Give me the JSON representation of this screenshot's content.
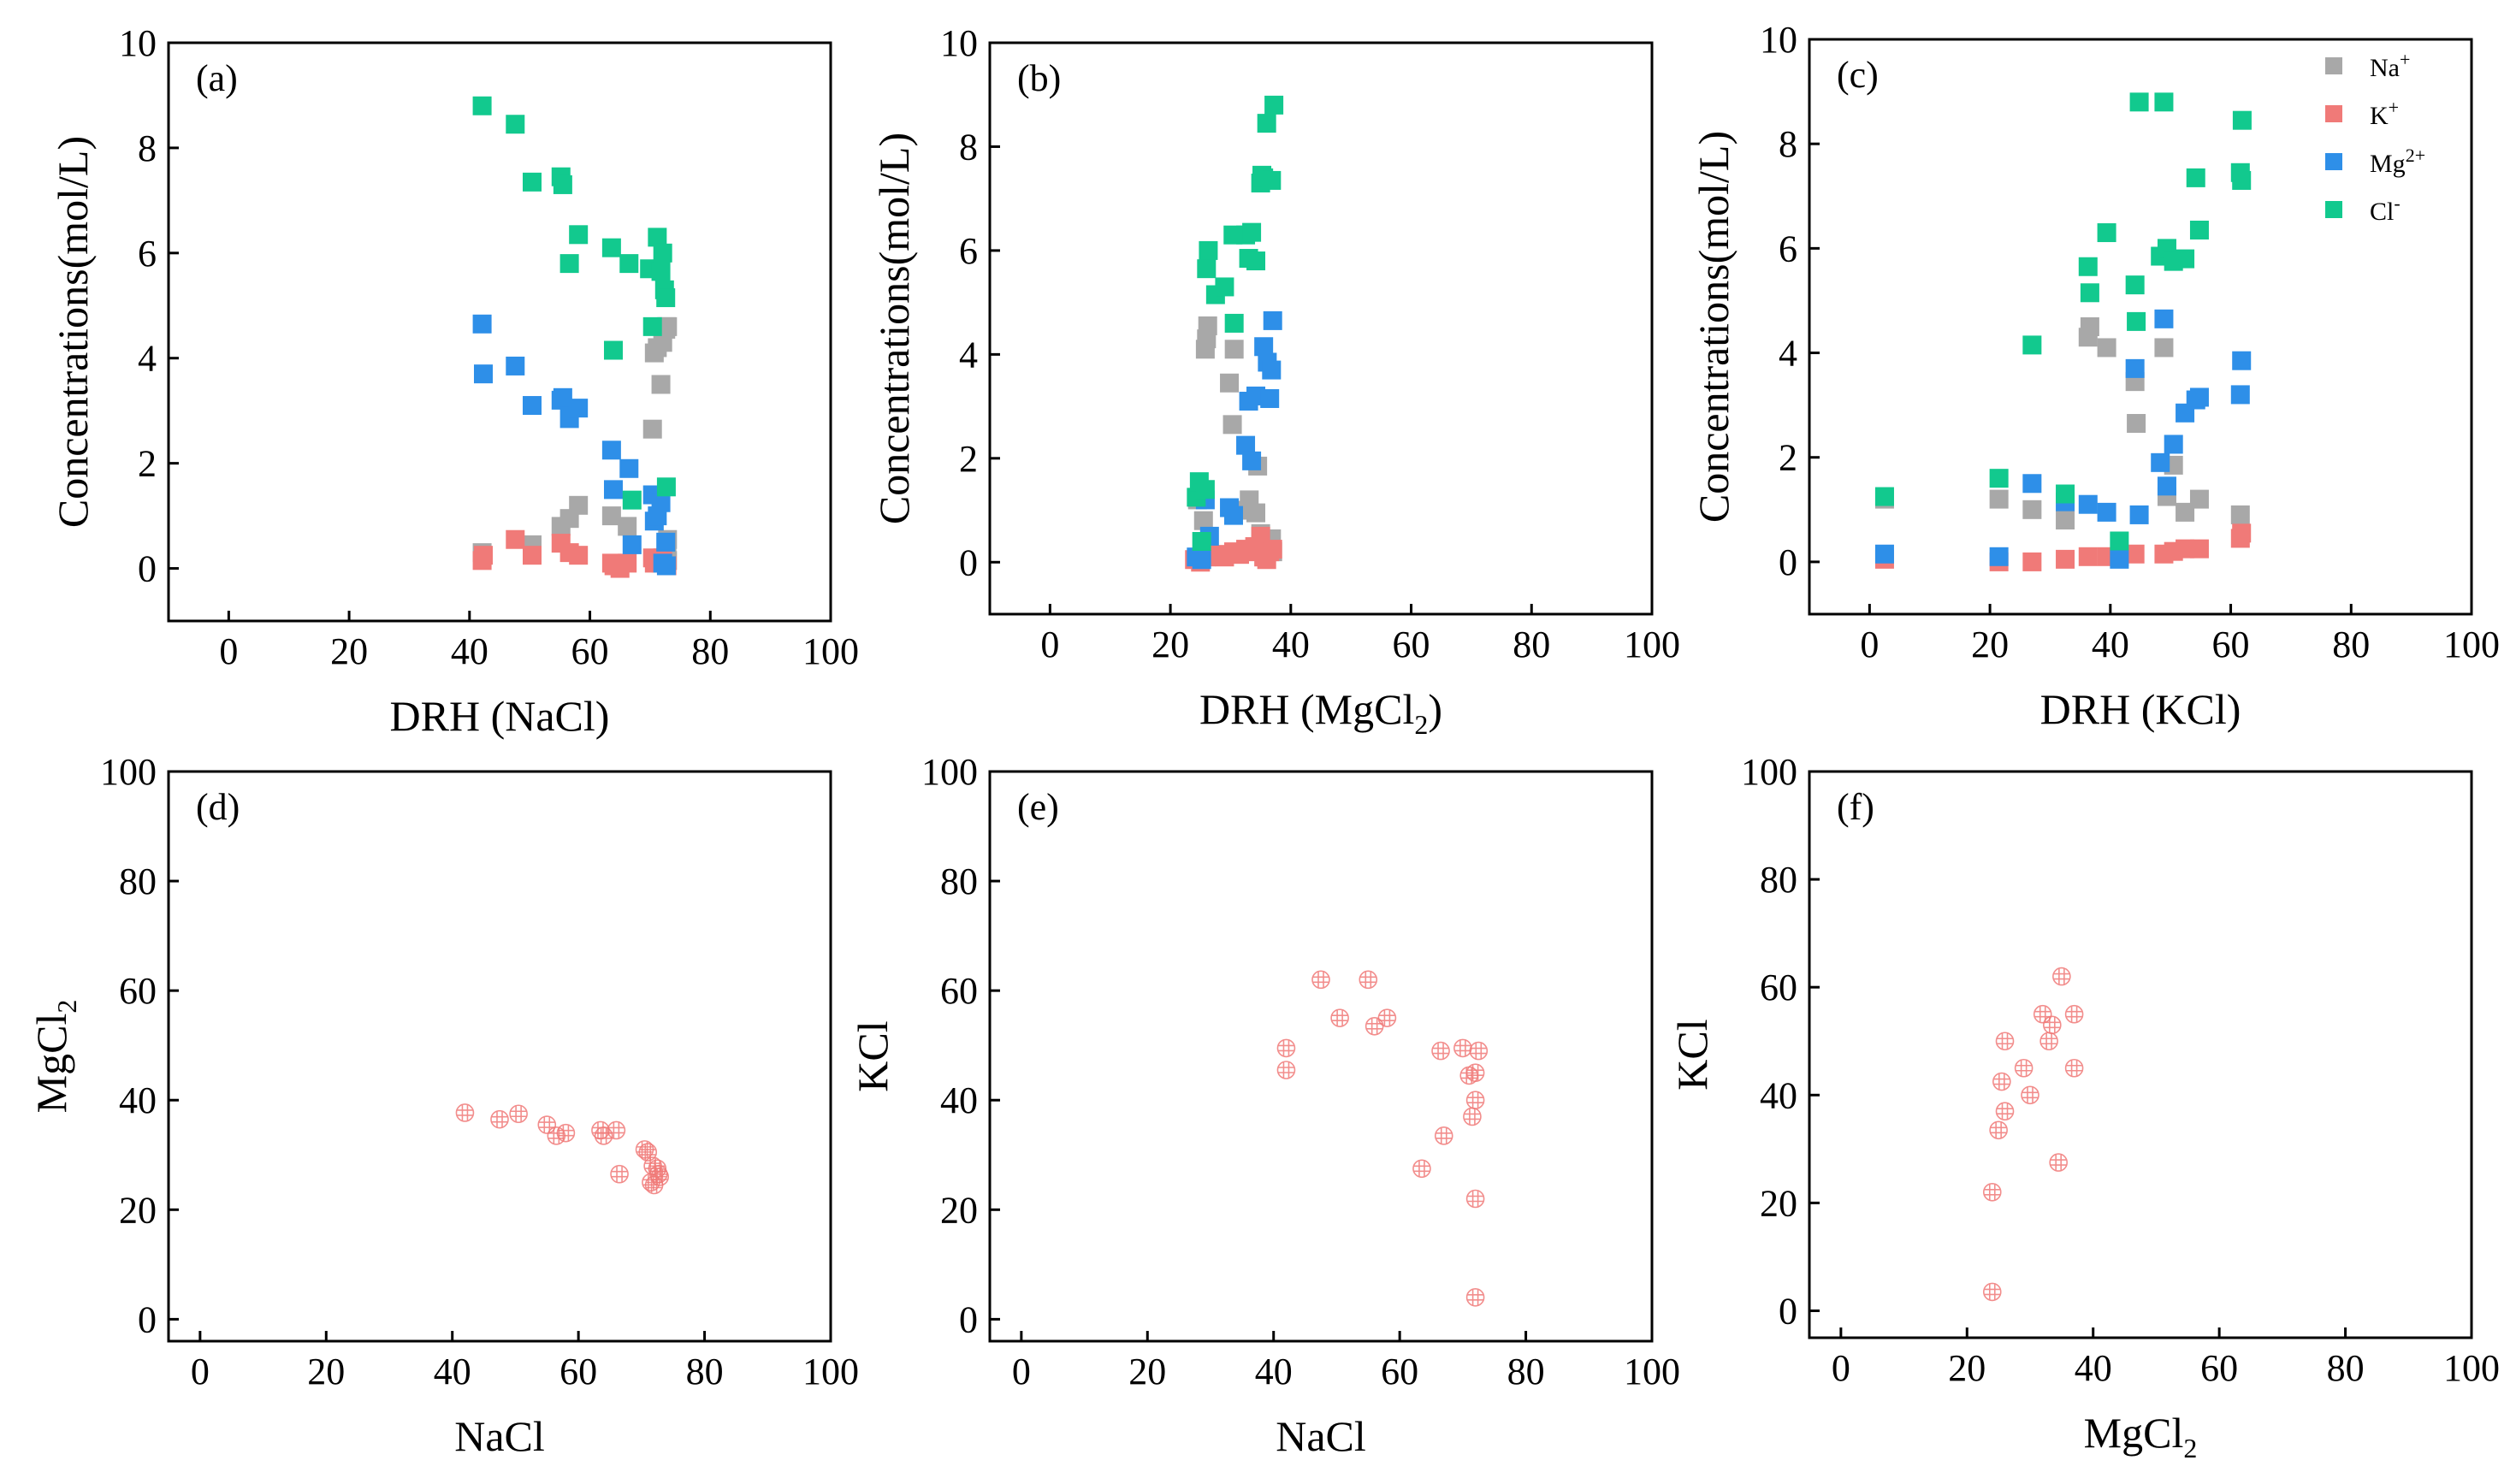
{
  "colors": {
    "Na": "#a8a8a8",
    "K": "#f07a78",
    "Mg": "#2e8fe8",
    "Cl": "#12c98e",
    "scatter": "#f07a78"
  },
  "legend": [
    {
      "key": "Na",
      "label": "Na",
      "sup": "+"
    },
    {
      "key": "K",
      "label": "K",
      "sup": "+"
    },
    {
      "key": "Mg",
      "label": "Mg",
      "sup": "2+"
    },
    {
      "key": "Cl",
      "label": "Cl",
      "sup": "-"
    }
  ],
  "chart_data": [
    {
      "id": "a",
      "type": "scatter",
      "tag": "(a)",
      "xlabel": "DRH (NaCl)",
      "ylabel": "Concentrations(mol/L)",
      "xlim": [
        -10,
        100
      ],
      "ylim": [
        -1,
        10
      ],
      "xticks": [
        0,
        20,
        40,
        60,
        80,
        100
      ],
      "yticks": [
        0,
        2,
        4,
        6,
        8,
        10
      ],
      "series": [
        {
          "name": "Na",
          "x": [
            42.1,
            50.4,
            55.2,
            56.6,
            58.1,
            63.6,
            66.2,
            70.4,
            70.7,
            71.2,
            71.8,
            72.1,
            72.6,
            72.7,
            72.9,
            72.8,
            72.8,
            72.9,
            72.9
          ],
          "y": [
            0.3,
            0.45,
            0.8,
            0.95,
            1.2,
            1.0,
            0.8,
            2.65,
            4.1,
            4.2,
            3.5,
            4.3,
            4.55,
            4.6,
            4.6,
            0.2,
            0.4,
            0.55,
            0.15
          ]
        },
        {
          "name": "K",
          "x": [
            42.1,
            42.3,
            47.6,
            50.4,
            55.2,
            56.6,
            58.1,
            63.6,
            64.0,
            65.0,
            66.2,
            70.4,
            70.7,
            71.2,
            71.8,
            72.1,
            72.8
          ],
          "y": [
            0.15,
            0.25,
            0.55,
            0.25,
            0.48,
            0.3,
            0.25,
            0.1,
            0.05,
            0.0,
            0.1,
            0.2,
            0.1,
            0.15,
            0.1,
            0.2,
            0.05
          ]
        },
        {
          "name": "Mg",
          "x": [
            42.1,
            42.3,
            47.6,
            50.4,
            55.2,
            55.5,
            56.6,
            58.1,
            63.6,
            63.9,
            66.5,
            67.0,
            70.4,
            70.7,
            71.2,
            71.8,
            72.1,
            72.6,
            72.7
          ],
          "y": [
            4.65,
            3.7,
            3.85,
            3.1,
            3.2,
            3.25,
            2.85,
            3.05,
            2.25,
            1.5,
            1.9,
            0.45,
            1.4,
            0.9,
            1.0,
            1.25,
            0.1,
            0.5,
            0.05
          ]
        },
        {
          "name": "Cl",
          "x": [
            42.1,
            47.6,
            50.4,
            55.2,
            55.5,
            56.6,
            58.1,
            63.6,
            63.9,
            66.5,
            67.0,
            69.9,
            70.4,
            71.2,
            71.8,
            72.1,
            72.4,
            72.6,
            72.7
          ],
          "y": [
            8.8,
            8.45,
            7.35,
            7.45,
            7.3,
            5.8,
            6.35,
            6.1,
            4.15,
            5.8,
            1.3,
            5.7,
            4.6,
            6.3,
            5.65,
            6.0,
            5.3,
            5.15,
            1.55
          ]
        }
      ]
    },
    {
      "id": "b",
      "type": "scatter",
      "tag": "(b)",
      "xlabel": "DRH (MgCl",
      "xlabel_sub": "2",
      "xlabel_end": ")",
      "ylabel": "Concentrations(mol/L)",
      "xlim": [
        -10,
        100
      ],
      "ylim": [
        -1,
        10
      ],
      "xticks": [
        0,
        20,
        40,
        60,
        80,
        100
      ],
      "yticks": [
        0,
        2,
        4,
        6,
        8,
        10
      ],
      "series": [
        {
          "name": "Na",
          "x": [
            24.5,
            25.5,
            25.8,
            26.0,
            26.2,
            29.8,
            30.3,
            30.6,
            32.5,
            33.1,
            34.2,
            34.5,
            35.0,
            35.6,
            36.1,
            36.8,
            37.0
          ],
          "y": [
            1.2,
            0.8,
            4.1,
            4.3,
            4.55,
            3.45,
            2.65,
            4.1,
            1.0,
            1.2,
            0.95,
            1.85,
            0.55,
            0.4,
            0.3,
            0.45,
            0.2
          ]
        },
        {
          "name": "K",
          "x": [
            24.0,
            25.0,
            26.0,
            27.5,
            29.0,
            30.5,
            31.5,
            32.5,
            33.5,
            34.0,
            35.0,
            35.5,
            36.0,
            36.5,
            37.0
          ],
          "y": [
            0.05,
            0.0,
            0.1,
            0.15,
            0.1,
            0.2,
            0.15,
            0.25,
            0.2,
            0.3,
            0.5,
            0.1,
            0.05,
            0.2,
            0.25
          ]
        },
        {
          "name": "Mg",
          "x": [
            24.3,
            25.2,
            25.8,
            26.5,
            29.8,
            30.5,
            32.5,
            33.0,
            33.5,
            34.2,
            35.5,
            36.1,
            36.5,
            36.8,
            37.0
          ],
          "y": [
            0.1,
            0.05,
            1.2,
            0.5,
            1.05,
            0.9,
            2.25,
            3.1,
            1.95,
            3.2,
            4.15,
            3.85,
            3.15,
            3.7,
            4.65
          ]
        },
        {
          "name": "Cl",
          "x": [
            24.3,
            24.8,
            25.2,
            25.8,
            26.0,
            26.3,
            27.5,
            29.0,
            30.4,
            30.6,
            32.5,
            33.0,
            33.5,
            34.2,
            35.0,
            35.2,
            35.5,
            36.0,
            36.8,
            37.2
          ],
          "y": [
            1.25,
            1.55,
            0.4,
            1.4,
            5.65,
            6.0,
            5.15,
            5.3,
            6.3,
            4.6,
            6.3,
            5.85,
            6.35,
            5.8,
            7.3,
            7.45,
            7.4,
            8.45,
            7.35,
            8.8
          ]
        }
      ]
    },
    {
      "id": "c",
      "type": "scatter",
      "tag": "(c)",
      "xlabel": "DRH (KCl)",
      "ylabel": "Concentrations(mol/L)",
      "xlim": [
        -10,
        100
      ],
      "ylim": [
        -1,
        10
      ],
      "xticks": [
        0,
        20,
        40,
        60,
        80,
        100
      ],
      "yticks": [
        0,
        2,
        4,
        6,
        8,
        10
      ],
      "series": [
        {
          "name": "Na",
          "x": [
            2.5,
            21.5,
            27.0,
            32.5,
            36.3,
            36.6,
            39.4,
            44.1,
            44.3,
            48.9,
            49.4,
            50.5,
            52.4,
            54.8,
            61.6
          ],
          "y": [
            1.2,
            1.2,
            1.0,
            0.8,
            4.3,
            4.5,
            4.1,
            3.45,
            2.65,
            4.1,
            1.25,
            1.85,
            0.95,
            1.2,
            0.9
          ]
        },
        {
          "name": "K",
          "x": [
            2.5,
            21.5,
            27.0,
            32.5,
            36.3,
            39.4,
            41.5,
            44.1,
            48.9,
            50.5,
            52.4,
            54.8,
            61.6,
            61.8
          ],
          "y": [
            0.05,
            0.0,
            0.0,
            0.05,
            0.1,
            0.1,
            0.1,
            0.15,
            0.15,
            0.2,
            0.25,
            0.25,
            0.45,
            0.55
          ]
        },
        {
          "name": "Mg",
          "x": [
            2.5,
            21.5,
            27.0,
            32.5,
            36.3,
            39.4,
            41.5,
            44.1,
            44.8,
            48.3,
            48.9,
            49.4,
            50.5,
            52.4,
            54.2,
            54.8,
            61.6,
            61.8
          ],
          "y": [
            0.15,
            0.1,
            1.5,
            1.15,
            1.1,
            0.95,
            0.05,
            3.7,
            0.9,
            1.9,
            4.65,
            1.45,
            2.25,
            2.85,
            3.1,
            3.15,
            3.2,
            3.85
          ]
        },
        {
          "name": "Cl",
          "x": [
            2.5,
            21.5,
            27.0,
            32.5,
            36.3,
            36.6,
            39.4,
            41.5,
            44.1,
            44.3,
            44.8,
            48.3,
            48.9,
            49.4,
            50.5,
            52.4,
            54.2,
            54.8,
            61.6,
            61.8,
            61.9
          ],
          "y": [
            1.25,
            1.6,
            4.15,
            1.3,
            5.65,
            5.15,
            6.3,
            0.4,
            5.3,
            4.6,
            8.8,
            5.85,
            8.8,
            6.0,
            5.75,
            5.8,
            7.35,
            6.35,
            7.45,
            7.3,
            8.45
          ]
        }
      ]
    },
    {
      "id": "d",
      "type": "scatter",
      "tag": "(d)",
      "xlabel": "NaCl",
      "ylabel": "MgCl",
      "ylabel_sub": "2",
      "xlim": [
        -5,
        100
      ],
      "ylim": [
        -4,
        100
      ],
      "xticks": [
        0,
        20,
        40,
        60,
        80,
        100
      ],
      "yticks": [
        0,
        20,
        40,
        60,
        80,
        100
      ],
      "series": [
        {
          "name": "points",
          "x": [
            42.0,
            47.5,
            50.5,
            55.0,
            56.5,
            58.0,
            63.5,
            64.0,
            66.0,
            66.5,
            70.5,
            71.0,
            71.5,
            71.8,
            72.0,
            72.5,
            72.7,
            72.9
          ],
          "y": [
            37.7,
            36.5,
            37.5,
            35.5,
            33.5,
            34.0,
            34.5,
            33.5,
            34.5,
            26.5,
            31.0,
            30.5,
            25.0,
            28.0,
            24.5,
            27.5,
            26.5,
            26.0
          ]
        }
      ]
    },
    {
      "id": "e",
      "type": "scatter",
      "tag": "(e)",
      "xlabel": "NaCl",
      "ylabel": "KCl",
      "xlim": [
        -5,
        100
      ],
      "ylim": [
        -4,
        100
      ],
      "xticks": [
        0,
        20,
        40,
        60,
        80,
        100
      ],
      "yticks": [
        0,
        20,
        40,
        60,
        80,
        100
      ],
      "series": [
        {
          "name": "points",
          "x": [
            42.0,
            42.0,
            47.5,
            50.5,
            55.0,
            56.0,
            58.0,
            63.5,
            66.5,
            67.0,
            70.0,
            71.0,
            71.5,
            72.0,
            72.0,
            72.0,
            72.0,
            72.5
          ],
          "y": [
            49.5,
            45.5,
            62.0,
            55.0,
            62.0,
            53.5,
            55.0,
            27.5,
            49.0,
            33.5,
            49.5,
            44.5,
            37.0,
            40.0,
            4.0,
            22.0,
            45.0,
            49.0
          ]
        }
      ]
    },
    {
      "id": "f",
      "type": "scatter",
      "tag": "(f)",
      "xlabel": "MgCl",
      "xlabel_sub": "2",
      "ylabel": "KCl",
      "xlim": [
        -5,
        100
      ],
      "ylim": [
        -5,
        100
      ],
      "xticks": [
        0,
        20,
        40,
        60,
        80,
        100
      ],
      "yticks": [
        0,
        20,
        40,
        60,
        80,
        100
      ],
      "series": [
        {
          "name": "points",
          "x": [
            24.0,
            24.0,
            25.0,
            25.5,
            26.0,
            26.0,
            29.0,
            30.0,
            32.0,
            33.0,
            33.5,
            34.5,
            35.0,
            37.0,
            37.0
          ],
          "y": [
            3.5,
            22.0,
            33.5,
            42.5,
            37.0,
            50.0,
            45.0,
            40.0,
            55.0,
            50.0,
            53.0,
            27.5,
            62.0,
            45.0,
            55.0
          ]
        }
      ]
    }
  ]
}
